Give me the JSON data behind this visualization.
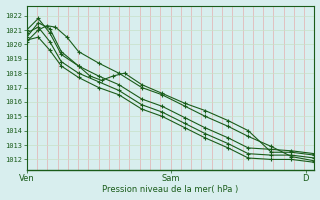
{
  "bg_color": "#d8eeee",
  "grid_color_h": "#c8e0c8",
  "grid_color_v": "#f0a0a0",
  "plot_bg": "#d8eeee",
  "line_color": "#1a5c1a",
  "marker_color": "#1a5c1a",
  "ylabel_ticks": [
    1012,
    1013,
    1014,
    1015,
    1016,
    1017,
    1018,
    1019,
    1020,
    1021,
    1022
  ],
  "ylim": [
    1011.3,
    1022.7
  ],
  "xlabel": "Pression niveau de la mer( hPa )",
  "xtick_labels": [
    "Ven",
    "Sam",
    "D"
  ],
  "xtick_positions": [
    0.0,
    0.5,
    0.97
  ],
  "xlim": [
    0.0,
    1.0
  ],
  "series": [
    {
      "x": [
        0.0,
        0.04,
        0.08,
        0.12,
        0.18,
        0.25,
        0.32,
        0.4,
        0.47,
        0.55,
        0.62,
        0.7,
        0.77,
        0.85,
        0.92,
        1.0
      ],
      "y": [
        1020.3,
        1020.5,
        1019.6,
        1018.5,
        1017.7,
        1017.0,
        1016.5,
        1015.5,
        1015.0,
        1014.2,
        1013.5,
        1012.8,
        1012.1,
        1012.0,
        1012.0,
        1011.8
      ]
    },
    {
      "x": [
        0.0,
        0.04,
        0.08,
        0.12,
        0.18,
        0.25,
        0.32,
        0.4,
        0.47,
        0.55,
        0.62,
        0.7,
        0.77,
        0.85,
        0.92,
        1.0
      ],
      "y": [
        1020.8,
        1021.2,
        1020.2,
        1018.8,
        1018.0,
        1017.4,
        1016.8,
        1015.8,
        1015.3,
        1014.5,
        1013.8,
        1013.1,
        1012.4,
        1012.3,
        1012.3,
        1012.1
      ]
    },
    {
      "x": [
        0.0,
        0.04,
        0.08,
        0.12,
        0.18,
        0.22,
        0.26,
        0.3,
        0.34,
        0.4,
        0.47,
        0.55,
        0.62,
        0.7,
        0.77,
        0.85,
        0.92,
        1.0
      ],
      "y": [
        1020.5,
        1021.5,
        1021.1,
        1019.5,
        1018.5,
        1017.8,
        1017.5,
        1017.8,
        1018.0,
        1017.2,
        1016.6,
        1015.9,
        1015.4,
        1014.7,
        1014.0,
        1012.5,
        1012.5,
        1012.3
      ]
    },
    {
      "x": [
        0.0,
        0.04,
        0.08,
        0.12,
        0.18,
        0.25,
        0.32,
        0.4,
        0.47,
        0.55,
        0.62,
        0.7,
        0.77,
        0.85,
        0.92,
        1.0
      ],
      "y": [
        1021.0,
        1021.8,
        1020.8,
        1019.3,
        1018.5,
        1017.8,
        1017.2,
        1016.2,
        1015.7,
        1014.9,
        1014.2,
        1013.5,
        1012.8,
        1012.7,
        1012.6,
        1012.4
      ]
    },
    {
      "x": [
        0.0,
        0.04,
        0.07,
        0.1,
        0.14,
        0.18,
        0.25,
        0.32,
        0.4,
        0.47,
        0.55,
        0.62,
        0.7,
        0.77,
        0.85,
        0.92,
        1.0
      ],
      "y": [
        1020.2,
        1021.0,
        1021.3,
        1021.2,
        1020.5,
        1019.5,
        1018.7,
        1018.0,
        1017.0,
        1016.5,
        1015.7,
        1015.0,
        1014.3,
        1013.6,
        1012.9,
        1012.2,
        1011.9
      ]
    }
  ]
}
